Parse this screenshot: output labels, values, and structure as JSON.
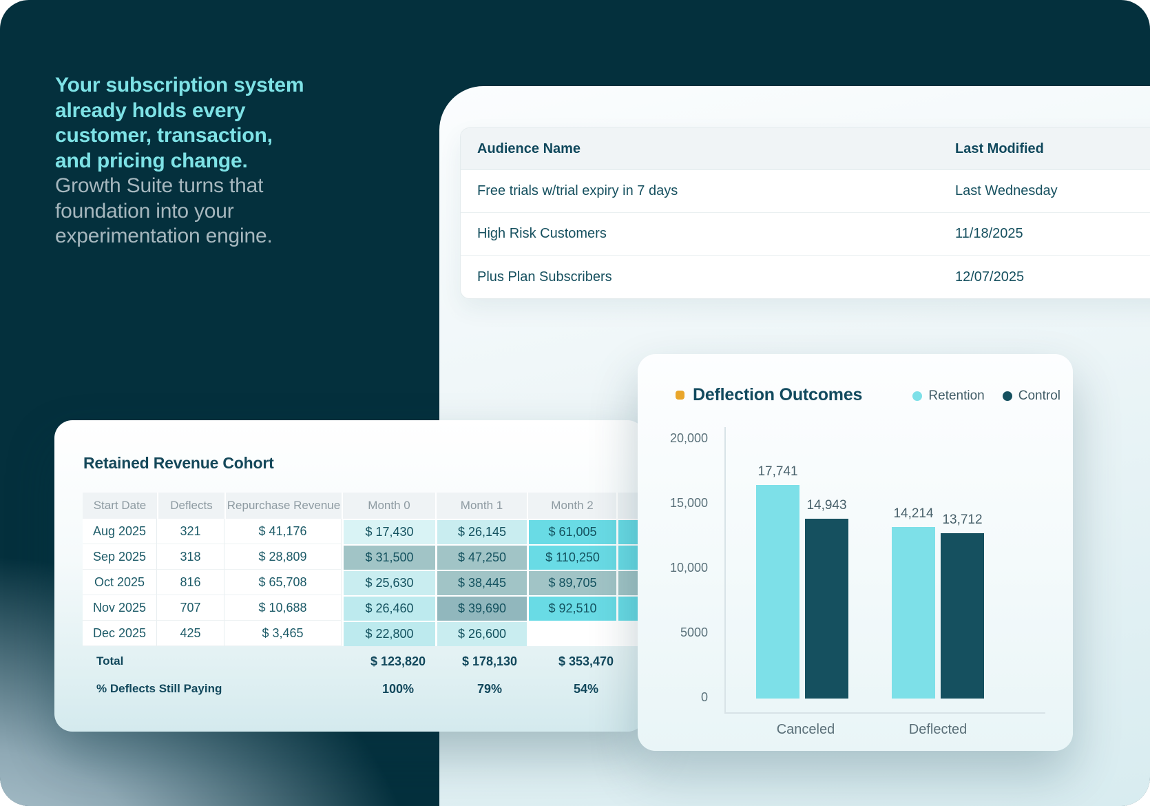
{
  "theme": {
    "background_dark": "#04303d",
    "accent_cyan": "#7de0e8",
    "accent_dark_teal": "#15505f",
    "accent_yellow": "#e9a62b",
    "heatmap_palette": {
      "l1": "#d9f3f5",
      "l2": "#c9edf0",
      "l3": "#bdeaee",
      "g1": "#a1c4c6",
      "g2": "#91b7bd",
      "b": "#69dbe5",
      "none": "#ffffff"
    }
  },
  "hero": {
    "headline_lines": [
      "Your subscription system",
      "already holds every",
      "customer, transaction,",
      "and pricing change."
    ],
    "subline_lines": [
      "Growth Suite turns that",
      "foundation into your",
      "experimentation engine."
    ]
  },
  "audience_panel": {
    "columns": [
      "Audience Name",
      "Last Modified"
    ],
    "rows": [
      {
        "name": "Free trials w/trial expiry in 7 days",
        "modified": "Last Wednesday"
      },
      {
        "name": "High Risk Customers",
        "modified": "11/18/2025"
      },
      {
        "name": "Plus Plan Subscribers",
        "modified": "12/07/2025"
      }
    ]
  },
  "cohort_card": {
    "title": "Retained Revenue Cohort",
    "columns": [
      "Start Date",
      "Deflects",
      "Repurchase Revenue",
      "Month 0",
      "Month 1",
      "Month 2"
    ],
    "rows": [
      {
        "cells": [
          "Aug 2025",
          "321",
          "$ 41,176",
          "$ 17,430",
          "$ 26,145",
          "$ 61,005"
        ],
        "shades": [
          "l1",
          "l2",
          "b",
          "b"
        ]
      },
      {
        "cells": [
          "Sep 2025",
          "318",
          "$ 28,809",
          "$ 31,500",
          "$ 47,250",
          "$ 110,250"
        ],
        "shades": [
          "g1",
          "g1",
          "b",
          "b"
        ]
      },
      {
        "cells": [
          "Oct 2025",
          "816",
          "$ 65,708",
          "$ 25,630",
          "$ 38,445",
          "$ 89,705"
        ],
        "shades": [
          "l2",
          "g1",
          "g1",
          "g1"
        ]
      },
      {
        "cells": [
          "Nov 2025",
          "707",
          "$ 10,688",
          "$ 26,460",
          "$ 39,690",
          "$ 92,510"
        ],
        "shades": [
          "l3",
          "g2",
          "b",
          "b"
        ]
      },
      {
        "cells": [
          "Dec 2025",
          "425",
          "$ 3,465",
          "$ 22,800",
          "$ 26,600",
          ""
        ],
        "shades": [
          "l3",
          "l2",
          "none",
          "none"
        ]
      }
    ],
    "total_label": "Total",
    "total_values": [
      "$ 123,820",
      "$ 178,130",
      "$ 353,470"
    ],
    "pct_label": "% Deflects Still Paying",
    "pct_values": [
      "100%",
      "79%",
      "54%"
    ]
  },
  "chart_data": {
    "type": "bar",
    "title": "Deflection Outcomes",
    "categories": [
      "Canceled",
      "Deflected"
    ],
    "series": [
      {
        "name": "Retention",
        "color": "#7de0e8",
        "values": [
          17741,
          14214
        ],
        "value_labels": [
          "17,741",
          "14,214"
        ]
      },
      {
        "name": "Control",
        "color": "#15505f",
        "values": [
          14943,
          13712
        ],
        "value_labels": [
          "14,943",
          "13,712"
        ]
      }
    ],
    "y_ticks": [
      "20,000",
      "15,000",
      "10,000",
      "5000",
      "0"
    ],
    "ylim": [
      0,
      20000
    ],
    "xlabel": "",
    "ylabel": "",
    "grid": false,
    "legend_position": "top-right"
  }
}
